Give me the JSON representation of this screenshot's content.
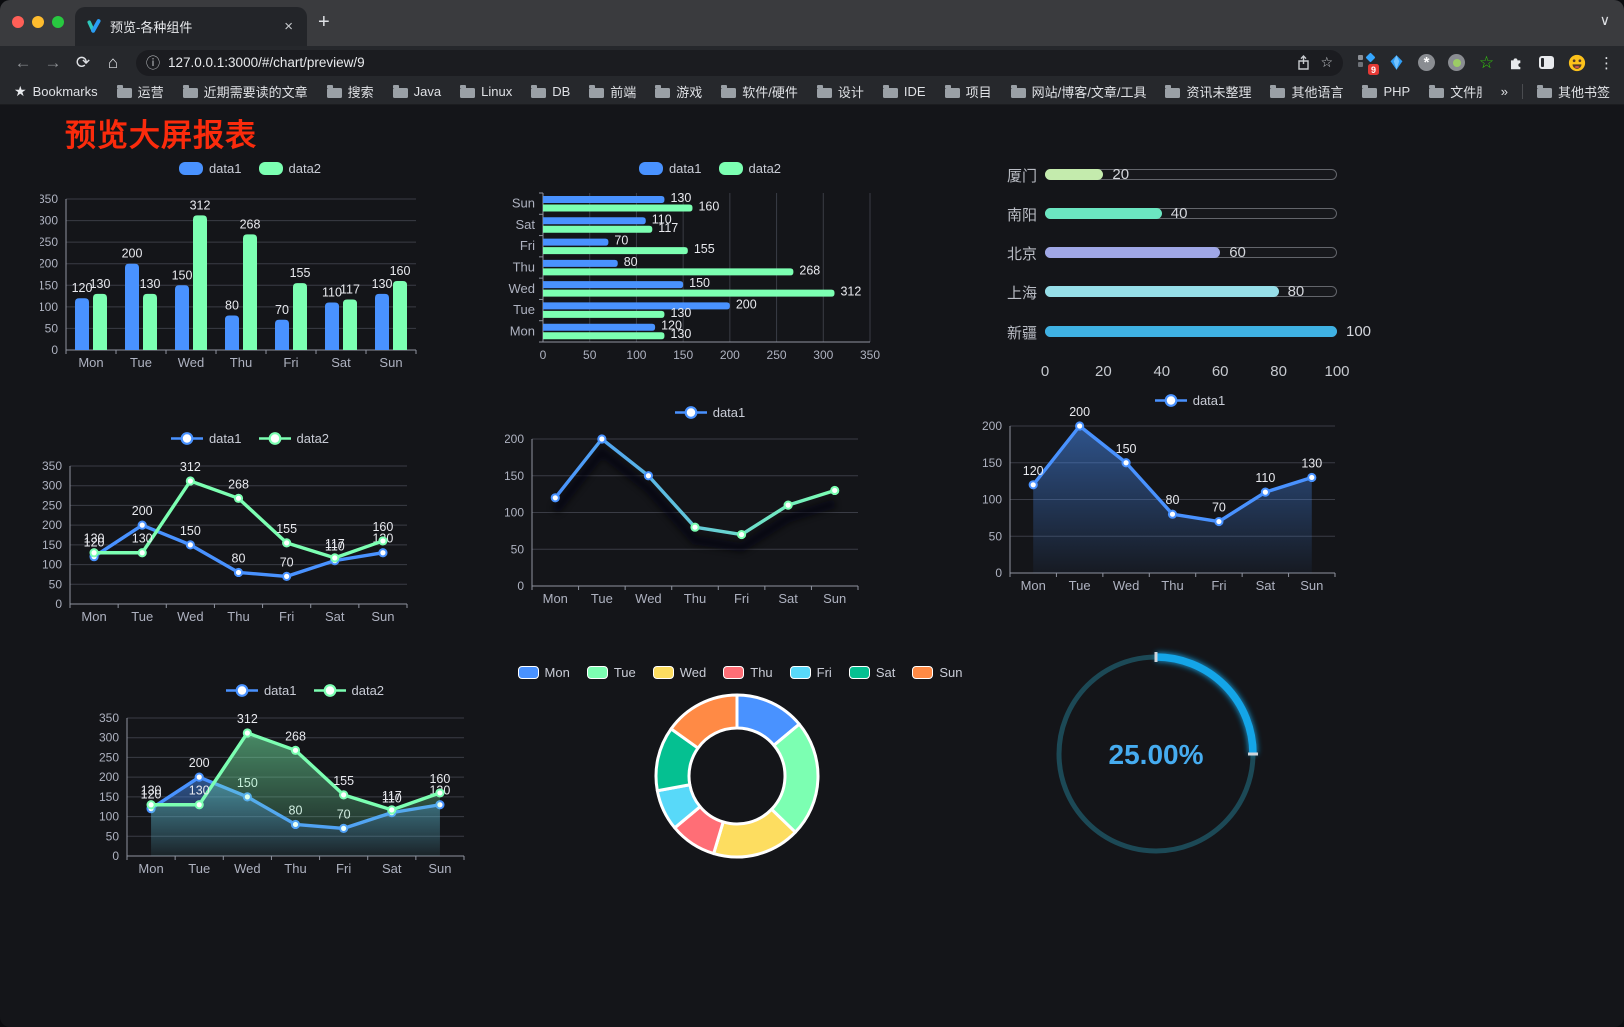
{
  "browser": {
    "tab_title": "预览-各种组件",
    "url": "127.0.0.1:3000/#/chart/preview/9",
    "extension_badge": "9",
    "bookmarks_label": "Bookmarks",
    "bookmarks": [
      "运营",
      "近期需要读的文章",
      "搜索",
      "Java",
      "Linux",
      "DB",
      "前端",
      "游戏",
      "软件/硬件",
      "设计",
      "IDE",
      "项目",
      "网站/博客/文章/工具",
      "资讯未整理",
      "其他语言",
      "PHP",
      "文件服务器"
    ],
    "overflow_symbol": "»",
    "other_bookmarks": "其他书签"
  },
  "icons": {
    "back": "←",
    "forward": "→",
    "reload": "⟳",
    "home": "⌂",
    "info": "ⓘ",
    "star": "☆",
    "new_tab": "+",
    "tab_search": "∨",
    "menu": "⋮",
    "close_tab": "×",
    "bookmarks_star": "★",
    "asterisk": "*",
    "green_star": "☆"
  },
  "page": {
    "title": "预览大屏报表",
    "title_color": "#fb2b0c"
  },
  "chart_data": [
    {
      "id": "c1",
      "type": "bar",
      "categories": [
        "Mon",
        "Tue",
        "Wed",
        "Thu",
        "Fri",
        "Sat",
        "Sun"
      ],
      "series": [
        {
          "name": "data1",
          "color": "#4992ff",
          "values": [
            120,
            200,
            150,
            80,
            70,
            110,
            130
          ]
        },
        {
          "name": "data2",
          "color": "#7cffb2",
          "values": [
            130,
            130,
            312,
            268,
            155,
            117,
            160
          ]
        }
      ],
      "yticks": [
        0,
        50,
        100,
        150,
        200,
        250,
        300,
        350
      ],
      "ylim": [
        0,
        350
      ],
      "legend_position": "top",
      "grid": true,
      "value_labels": true
    },
    {
      "id": "c2",
      "type": "bar-horizontal",
      "categories_top_to_bottom": [
        "Sun",
        "Sat",
        "Fri",
        "Thu",
        "Wed",
        "Tue",
        "Mon"
      ],
      "series": [
        {
          "name": "data1",
          "color": "#4992ff",
          "values": [
            130,
            110,
            70,
            80,
            150,
            200,
            120
          ]
        },
        {
          "name": "data2",
          "color": "#7cffb2",
          "values": [
            160,
            117,
            155,
            268,
            312,
            130,
            130
          ]
        }
      ],
      "xticks": [
        0,
        50,
        100,
        150,
        200,
        250,
        300,
        350
      ],
      "xlim": [
        0,
        350
      ],
      "legend_position": "top",
      "grid": true,
      "value_labels": true
    },
    {
      "id": "c3",
      "type": "bar-horizontal-progress",
      "items": [
        {
          "label": "厦门",
          "value": 20,
          "color": "#c4ebad"
        },
        {
          "label": "南阳",
          "value": 40,
          "color": "#6be6c1"
        },
        {
          "label": "北京",
          "value": 60,
          "color": "#a0a7e6"
        },
        {
          "label": "上海",
          "value": 80,
          "color": "#96dee8"
        },
        {
          "label": "新疆",
          "value": 100,
          "color": "#3fb1e3"
        }
      ],
      "xticks": [
        0,
        20,
        40,
        60,
        80,
        100
      ],
      "xlim": [
        0,
        100
      ]
    },
    {
      "id": "c4",
      "type": "line",
      "categories": [
        "Mon",
        "Tue",
        "Wed",
        "Thu",
        "Fri",
        "Sat",
        "Sun"
      ],
      "series": [
        {
          "name": "data1",
          "color": "#4992ff",
          "values": [
            120,
            200,
            150,
            80,
            70,
            110,
            130
          ]
        },
        {
          "name": "data2",
          "color": "#7cffb2",
          "values": [
            130,
            130,
            312,
            268,
            155,
            117,
            160
          ]
        }
      ],
      "yticks": [
        0,
        50,
        100,
        150,
        200,
        250,
        300,
        350
      ],
      "ylim": [
        0,
        350
      ],
      "legend_position": "top",
      "value_labels": true
    },
    {
      "id": "c5",
      "type": "line",
      "categories": [
        "Mon",
        "Tue",
        "Wed",
        "Thu",
        "Fri",
        "Sat",
        "Sun"
      ],
      "series": [
        {
          "name": "data1",
          "color": "#4992ff",
          "gradient_end": "#7cffb2",
          "values": [
            120,
            200,
            150,
            80,
            70,
            110,
            130
          ]
        }
      ],
      "yticks": [
        0,
        50,
        100,
        150,
        200
      ],
      "ylim": [
        0,
        200
      ],
      "legend_position": "top",
      "value_labels": false,
      "shadow": true
    },
    {
      "id": "c6",
      "type": "area",
      "categories": [
        "Mon",
        "Tue",
        "Wed",
        "Thu",
        "Fri",
        "Sat",
        "Sun"
      ],
      "series": [
        {
          "name": "data1",
          "color": "#4992ff",
          "values": [
            120,
            200,
            150,
            80,
            70,
            110,
            130
          ]
        }
      ],
      "yticks": [
        0,
        50,
        100,
        150,
        200
      ],
      "ylim": [
        0,
        200
      ],
      "legend_position": "top",
      "value_labels": true
    },
    {
      "id": "c7",
      "type": "area",
      "categories": [
        "Mon",
        "Tue",
        "Wed",
        "Thu",
        "Fri",
        "Sat",
        "Sun"
      ],
      "series": [
        {
          "name": "data1",
          "color": "#4992ff",
          "values": [
            120,
            200,
            150,
            80,
            70,
            110,
            130
          ]
        },
        {
          "name": "data2",
          "color": "#7cffb2",
          "values": [
            130,
            130,
            312,
            268,
            155,
            117,
            160
          ]
        }
      ],
      "yticks": [
        0,
        50,
        100,
        150,
        200,
        250,
        300,
        350
      ],
      "ylim": [
        0,
        350
      ],
      "legend_position": "top",
      "value_labels": true
    },
    {
      "id": "c8",
      "type": "pie",
      "items": [
        {
          "label": "Mon",
          "value": 120,
          "color": "#4992ff"
        },
        {
          "label": "Tue",
          "value": 200,
          "color": "#7cffb2"
        },
        {
          "label": "Wed",
          "value": 150,
          "color": "#fddd60"
        },
        {
          "label": "Thu",
          "value": 80,
          "color": "#ff6e76"
        },
        {
          "label": "Fri",
          "value": 70,
          "color": "#58d9f9"
        },
        {
          "label": "Sat",
          "value": 110,
          "color": "#05c091"
        },
        {
          "label": "Sun",
          "value": 130,
          "color": "#ff8a45"
        }
      ],
      "legend_position": "top",
      "donut": true
    },
    {
      "id": "c9",
      "type": "gauge",
      "value": 25,
      "label": "25.00%",
      "arc_color": "#14a5e8",
      "track_color": "#1c4956",
      "text_color": "#46acf0"
    }
  ]
}
